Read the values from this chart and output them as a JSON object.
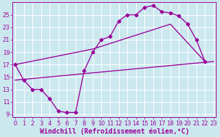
{
  "background_color": "#cce8ef",
  "grid_color": "#ffffff",
  "line_color": "#990099",
  "markersize": 2.5,
  "linewidth": 1.0,
  "xlabel": "Windchill (Refroidissement éolien,°C)",
  "xlabel_fontsize": 7,
  "tick_fontsize": 6,
  "xlim": [
    -0.3,
    23.3
  ],
  "ylim": [
    8.5,
    27
  ],
  "yticks": [
    9,
    11,
    13,
    15,
    17,
    19,
    21,
    23,
    25
  ],
  "xticks": [
    0,
    1,
    2,
    3,
    4,
    5,
    6,
    7,
    8,
    9,
    10,
    11,
    12,
    13,
    14,
    15,
    16,
    17,
    18,
    19,
    20,
    21,
    22,
    23
  ],
  "curve1_x": [
    0,
    1,
    2,
    3,
    4,
    5,
    6,
    7,
    8,
    9,
    10,
    11,
    12,
    13,
    14,
    15,
    16,
    17,
    18,
    19,
    20,
    21,
    22
  ],
  "curve1_y": [
    17,
    14.5,
    13,
    13,
    11.5,
    9.5,
    9.3,
    9.3,
    16,
    19.0,
    21.0,
    21.5,
    24.0,
    25.0,
    25.0,
    26.2,
    26.5,
    25.5,
    25.3,
    24.8,
    23.5,
    21.0,
    17.5
  ],
  "curve2_x": [
    0,
    9,
    18,
    22
  ],
  "curve2_y": [
    17,
    19.5,
    23.5,
    17.5
  ],
  "curve3_x": [
    0,
    23
  ],
  "curve3_y": [
    14.5,
    17.5
  ]
}
